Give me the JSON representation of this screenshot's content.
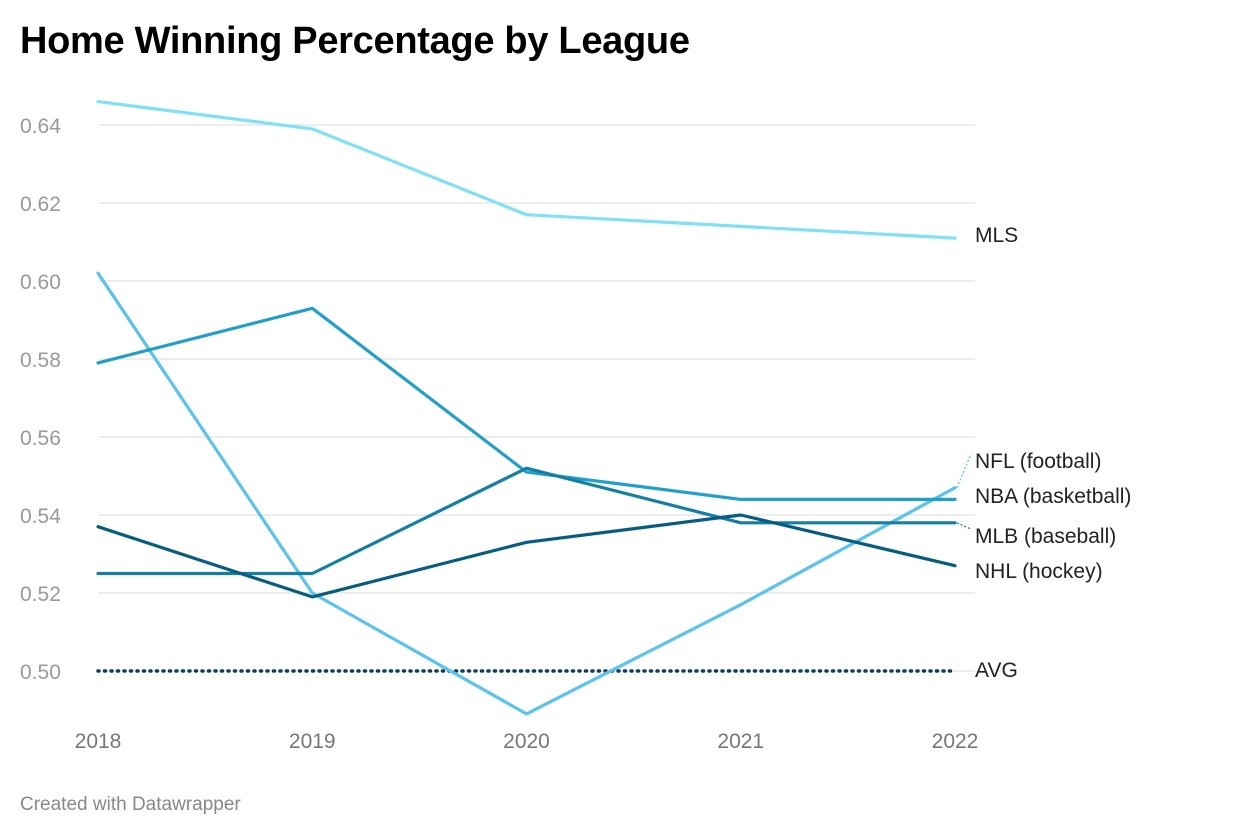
{
  "title": "Home Winning Percentage by League",
  "footer": "Created with Datawrapper",
  "chart_data": {
    "type": "line",
    "title": "Home Winning Percentage by League",
    "x": [
      "2018",
      "2019",
      "2020",
      "2021",
      "2022"
    ],
    "ylim": [
      0.489,
      0.65
    ],
    "yticks": [
      "0.64",
      "0.62",
      "0.60",
      "0.58",
      "0.56",
      "0.54",
      "0.52",
      "0.50"
    ],
    "grid": true,
    "legend": "direct labels at right end of lines",
    "series": [
      {
        "name": "MLS",
        "values": [
          0.646,
          0.639,
          0.617,
          0.614,
          0.611
        ],
        "color": "#7ee0f9",
        "style": "solid"
      },
      {
        "name": "NFL (football)",
        "values": [
          0.602,
          0.52,
          0.489,
          0.517,
          0.547
        ],
        "color": "#5bc3ec",
        "style": "solid"
      },
      {
        "name": "NBA (basketball)",
        "values": [
          0.579,
          0.593,
          0.551,
          0.544,
          0.544
        ],
        "color": "#219fcb",
        "style": "solid"
      },
      {
        "name": "MLB (baseball)",
        "values": [
          0.525,
          0.525,
          0.552,
          0.538,
          0.538
        ],
        "color": "#147fa4",
        "style": "solid"
      },
      {
        "name": "NHL (hockey)",
        "values": [
          0.537,
          0.519,
          0.533,
          0.54,
          0.527
        ],
        "color": "#065d81",
        "style": "solid"
      },
      {
        "name": "AVG",
        "values": [
          0.5,
          0.5,
          0.5,
          0.5,
          0.5
        ],
        "color": "#0c3e5c",
        "style": "dotted"
      }
    ]
  }
}
